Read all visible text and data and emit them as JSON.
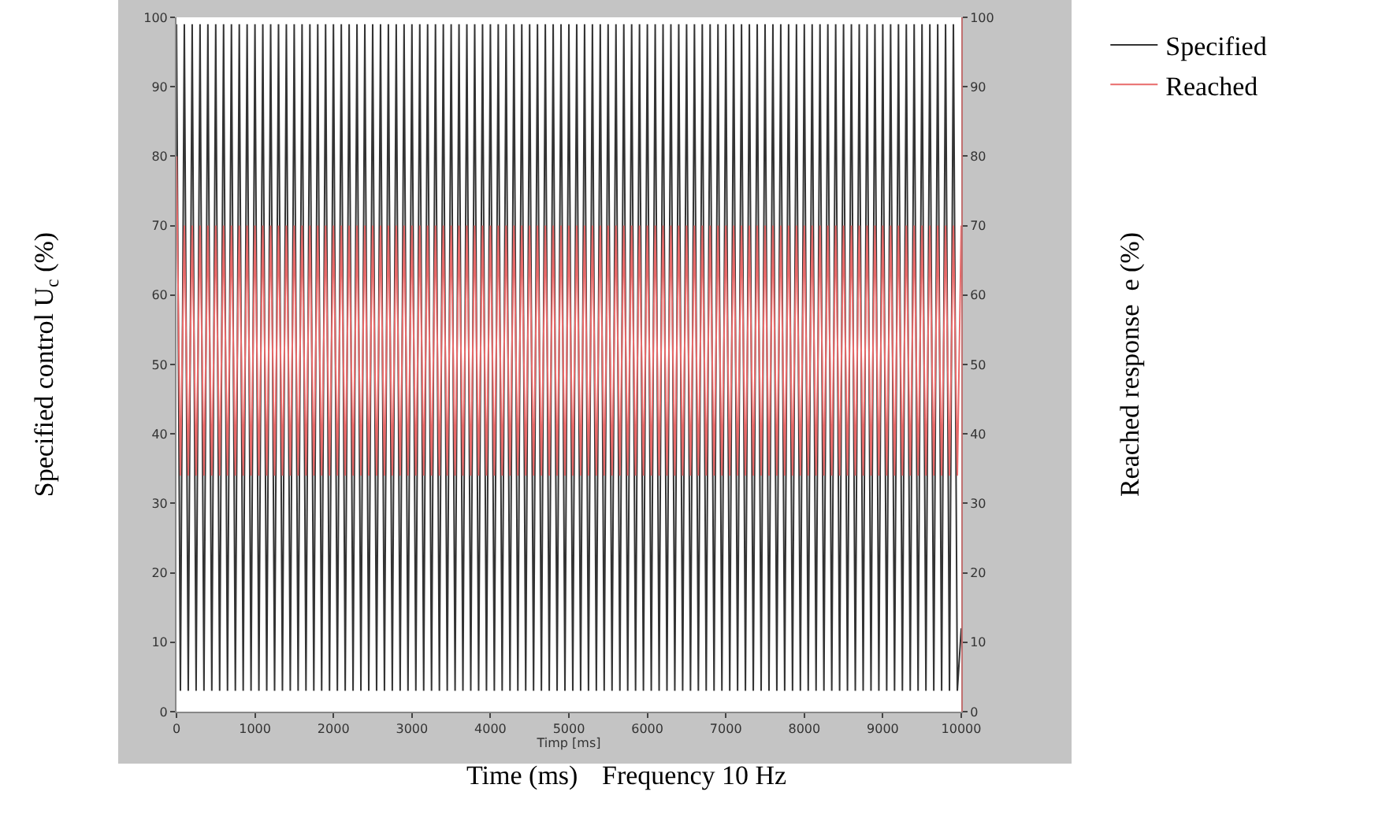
{
  "chart_data": {
    "type": "line",
    "xlabel": "Timp [ms]",
    "ylabel": "Specified control U$_{c}$ (%)",
    "y2label": "Reached response  e (%)",
    "annotations": [
      "Time (ms)",
      "Frequency 10 Hz"
    ],
    "x": [
      0,
      50,
      100,
      150,
      200,
      250,
      300,
      350,
      400,
      450,
      500,
      550,
      600,
      650,
      700,
      750,
      800,
      850,
      900,
      950,
      1000,
      1050,
      1100,
      1150,
      1200,
      1250,
      1300,
      1350,
      1400,
      1450,
      1500,
      1550,
      1600,
      1650,
      1700,
      1750,
      1800,
      1850,
      1900,
      1950,
      2000,
      2050,
      2100,
      2150,
      2200,
      2250,
      2300,
      2350,
      2400,
      2450,
      2500,
      2550,
      2600,
      2650,
      2700,
      2750,
      2800,
      2850,
      2900,
      2950,
      3000,
      3050,
      3100,
      3150,
      3200,
      3250,
      3300,
      3350,
      3400,
      3450,
      3500,
      3550,
      3600,
      3650,
      3700,
      3750,
      3800,
      3850,
      3900,
      3950,
      4000,
      4050,
      4100,
      4150,
      4200,
      4250,
      4300,
      4350,
      4400,
      4450,
      4500,
      4550,
      4600,
      4650,
      4700,
      4750,
      4800,
      4850,
      4900,
      4950,
      5000,
      5050,
      5100,
      5150,
      5200,
      5250,
      5300,
      5350,
      5400,
      5450,
      5500,
      5550,
      5600,
      5650,
      5700,
      5750,
      5800,
      5850,
      5900,
      5950,
      6000,
      6050,
      6100,
      6150,
      6200,
      6250,
      6300,
      6350,
      6400,
      6450,
      6500,
      6550,
      6600,
      6650,
      6700,
      6750,
      6800,
      6850,
      6900,
      6950,
      7000,
      7050,
      7100,
      7150,
      7200,
      7250,
      7300,
      7350,
      7400,
      7450,
      7500,
      7550,
      7600,
      7650,
      7700,
      7750,
      7800,
      7850,
      7900,
      7950,
      8000,
      8050,
      8100,
      8150,
      8200,
      8250,
      8300,
      8350,
      8400,
      8450,
      8500,
      8550,
      8600,
      8650,
      8700,
      8750,
      8800,
      8850,
      8900,
      8950,
      9000,
      9050,
      9100,
      9150,
      9200,
      9250,
      9300,
      9350,
      9400,
      9450,
      9500,
      9550,
      9600,
      9650,
      9700,
      9750,
      9800,
      9850,
      9900,
      9950,
      10000
    ],
    "series": [
      {
        "name": "Specified",
        "color": "#333333",
        "values": [
          99,
          3,
          99,
          3,
          99,
          3,
          99,
          3,
          99,
          3,
          99,
          3,
          99,
          3,
          99,
          3,
          99,
          3,
          99,
          3,
          99,
          3,
          99,
          3,
          99,
          3,
          99,
          3,
          99,
          3,
          99,
          3,
          99,
          3,
          99,
          3,
          99,
          3,
          99,
          3,
          99,
          3,
          99,
          3,
          99,
          3,
          99,
          3,
          99,
          3,
          99,
          3,
          99,
          3,
          99,
          3,
          99,
          3,
          99,
          3,
          99,
          3,
          99,
          3,
          99,
          3,
          99,
          3,
          99,
          3,
          99,
          3,
          99,
          3,
          99,
          3,
          99,
          3,
          99,
          3,
          99,
          3,
          99,
          3,
          99,
          3,
          99,
          3,
          99,
          3,
          99,
          3,
          99,
          3,
          99,
          3,
          99,
          3,
          99,
          3,
          99,
          3,
          99,
          3,
          99,
          3,
          99,
          3,
          99,
          3,
          99,
          3,
          99,
          3,
          99,
          3,
          99,
          3,
          99,
          3,
          99,
          3,
          99,
          3,
          99,
          3,
          99,
          3,
          99,
          3,
          99,
          3,
          99,
          3,
          99,
          3,
          99,
          3,
          99,
          3,
          99,
          3,
          99,
          3,
          99,
          3,
          99,
          3,
          99,
          3,
          99,
          3,
          99,
          3,
          99,
          3,
          99,
          3,
          99,
          3,
          99,
          3,
          99,
          3,
          99,
          3,
          99,
          3,
          99,
          3,
          99,
          3,
          99,
          3,
          99,
          3,
          99,
          3,
          99,
          3,
          99,
          3,
          99,
          3,
          99,
          3,
          99,
          3,
          99,
          3,
          99,
          3,
          99,
          3,
          99,
          3,
          99,
          3,
          99,
          3,
          12
        ]
      },
      {
        "name": "Reached",
        "color": "#e86a6a",
        "axis": "y2",
        "values": [
          80,
          34,
          70,
          34,
          70,
          34,
          70,
          34,
          70,
          34,
          70,
          34,
          70,
          34,
          70,
          34,
          70,
          34,
          70,
          34,
          70,
          34,
          70,
          34,
          70,
          34,
          70,
          34,
          70,
          34,
          70,
          34,
          70,
          34,
          70,
          34,
          70,
          34,
          70,
          34,
          70,
          34,
          70,
          34,
          70,
          34,
          70,
          34,
          70,
          34,
          70,
          34,
          70,
          34,
          70,
          34,
          70,
          34,
          70,
          34,
          70,
          34,
          70,
          34,
          70,
          34,
          70,
          34,
          70,
          34,
          70,
          34,
          70,
          34,
          70,
          34,
          70,
          34,
          70,
          34,
          70,
          34,
          70,
          34,
          70,
          34,
          70,
          34,
          70,
          34,
          70,
          34,
          70,
          34,
          70,
          34,
          70,
          34,
          70,
          34,
          70,
          34,
          70,
          34,
          70,
          34,
          70,
          34,
          70,
          34,
          70,
          34,
          70,
          34,
          70,
          34,
          70,
          34,
          70,
          34,
          70,
          34,
          70,
          34,
          70,
          34,
          70,
          34,
          70,
          34,
          70,
          34,
          70,
          34,
          70,
          34,
          70,
          34,
          70,
          34,
          70,
          34,
          70,
          34,
          70,
          34,
          70,
          34,
          70,
          34,
          70,
          34,
          70,
          34,
          70,
          34,
          70,
          34,
          70,
          34,
          70,
          34,
          70,
          34,
          70,
          34,
          70,
          34,
          70,
          34,
          70,
          34,
          70,
          34,
          70,
          34,
          70,
          34,
          70,
          34,
          70,
          34,
          70,
          34,
          70,
          34,
          70,
          34,
          70,
          34,
          70,
          34,
          70,
          34,
          70,
          34,
          70,
          34,
          70,
          34,
          70
        ]
      }
    ],
    "xlim": [
      0,
      10000
    ],
    "xticks": [
      0,
      1000,
      2000,
      3000,
      4000,
      5000,
      6000,
      7000,
      8000,
      9000,
      10000
    ],
    "ylim": [
      0,
      100
    ],
    "yticks": [
      0,
      10,
      20,
      30,
      40,
      50,
      60,
      70,
      80,
      90,
      100
    ],
    "y2lim": [
      0,
      100
    ],
    "y2ticks": [
      0,
      10,
      20,
      30,
      40,
      50,
      60,
      70,
      80,
      90,
      100
    ],
    "legend": "right",
    "marker": "none",
    "line_style": "solid"
  }
}
